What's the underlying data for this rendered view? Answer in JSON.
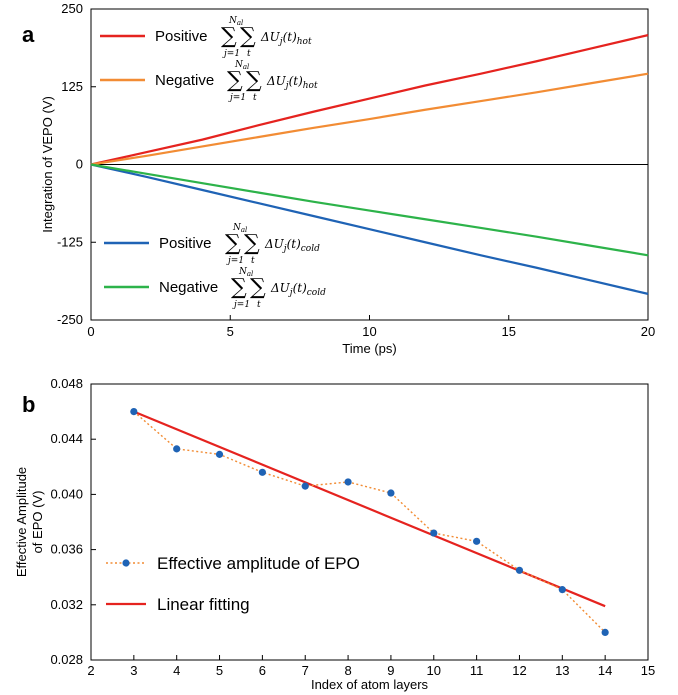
{
  "chart_data": [
    {
      "panel_label": "a",
      "type": "line",
      "xlabel": "Time (ps)",
      "ylabel": "Integration of VEPO (V)",
      "xlim": [
        0,
        20
      ],
      "ylim": [
        -250,
        250
      ],
      "xticks": [
        "0",
        "5",
        "10",
        "15",
        "20"
      ],
      "yticks": [
        "-250",
        "-125",
        "0",
        "125",
        "250"
      ],
      "zero_line": true,
      "legend_placement": "top-left and bottom-left",
      "series": [
        {
          "name_prefix": "Positive",
          "name_subscript": "hot",
          "color": "#e5231f",
          "x": [
            0,
            2,
            4,
            6,
            8,
            10,
            12,
            14,
            16,
            18,
            20
          ],
          "values": [
            0,
            20,
            40,
            63,
            85,
            106,
            127,
            146,
            166,
            187,
            208
          ]
        },
        {
          "name_prefix": "Negative",
          "name_subscript": "hot",
          "color": "#f28c34",
          "x": [
            0,
            2,
            4,
            6,
            8,
            10,
            12,
            14,
            16,
            18,
            20
          ],
          "values": [
            0,
            14,
            29,
            44,
            59,
            73,
            88,
            102,
            116,
            131,
            146
          ]
        },
        {
          "name_prefix": "Positive",
          "name_subscript": "cold",
          "color": "#1f63b5",
          "x": [
            0,
            2,
            4,
            6,
            8,
            10,
            12,
            14,
            16,
            18,
            20
          ],
          "values": [
            0,
            -20,
            -41,
            -62,
            -83,
            -104,
            -125,
            -146,
            -166,
            -187,
            -208
          ]
        },
        {
          "name_prefix": "Negative",
          "name_subscript": "cold",
          "color": "#2db34a",
          "x": [
            0,
            2,
            4,
            6,
            8,
            10,
            12,
            14,
            16,
            18,
            20
          ],
          "values": [
            0,
            -15,
            -30,
            -45,
            -60,
            -74,
            -88,
            -102,
            -116,
            -131,
            -146
          ]
        }
      ],
      "legend_math": {
        "sum_top": "N",
        "sum_top_sub": "al",
        "sum_bottom": "j=1",
        "sum_inner_sub": "t",
        "term": "ΔU",
        "term_sub": "j",
        "term_arg": "(t)"
      }
    },
    {
      "panel_label": "b",
      "type": "scatter",
      "xlabel": "Index of atom layers",
      "ylabel_line1": "Effective Amplitude",
      "ylabel_line2": "of EPO (V)",
      "xlim": [
        2,
        15
      ],
      "ylim": [
        0.028,
        0.048
      ],
      "xticks": [
        "2",
        "3",
        "4",
        "5",
        "6",
        "7",
        "8",
        "9",
        "10",
        "11",
        "12",
        "13",
        "14",
        "15"
      ],
      "yticks": [
        "0.028",
        "0.032",
        "0.036",
        "0.040",
        "0.044",
        "0.048"
      ],
      "legend_placement": "bottom-left",
      "series": [
        {
          "name": "Effective amplitude of EPO",
          "color": "#1f63b5",
          "line_color": "#f28c34",
          "style": "dotted-markers",
          "x": [
            3,
            4,
            5,
            6,
            7,
            8,
            9,
            10,
            11,
            12,
            13,
            14
          ],
          "values": [
            0.046,
            0.0433,
            0.0429,
            0.0416,
            0.0406,
            0.0409,
            0.0401,
            0.0372,
            0.0366,
            0.0345,
            0.0331,
            0.03
          ]
        },
        {
          "name": "Linear fitting",
          "color": "#e5231f",
          "style": "line",
          "x": [
            3,
            14
          ],
          "values": [
            0.046,
            0.0319
          ]
        }
      ]
    }
  ]
}
